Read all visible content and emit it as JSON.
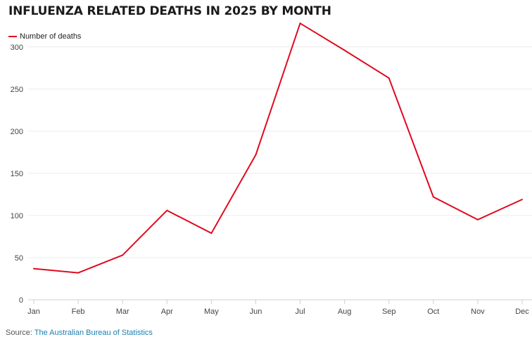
{
  "chart_data": {
    "type": "line",
    "title": "INFLUENZA RELATED DEATHS IN 2025 BY MONTH",
    "categories": [
      "Jan",
      "Feb",
      "Mar",
      "Apr",
      "May",
      "Jun",
      "Jul",
      "Aug",
      "Sep",
      "Oct",
      "Nov",
      "Dec"
    ],
    "series": [
      {
        "name": "Number of deaths",
        "color": "#e00a1e",
        "values": [
          37,
          32,
          53,
          106,
          79,
          172,
          328,
          296,
          263,
          122,
          95,
          119
        ]
      }
    ],
    "ylim": [
      0,
      300
    ],
    "yticks": [
      0,
      50,
      100,
      150,
      200,
      250,
      300
    ],
    "grid": true,
    "legend": "top-left"
  },
  "source": {
    "prefix": "Source: ",
    "text": "The Australian Bureau of Statistics"
  }
}
